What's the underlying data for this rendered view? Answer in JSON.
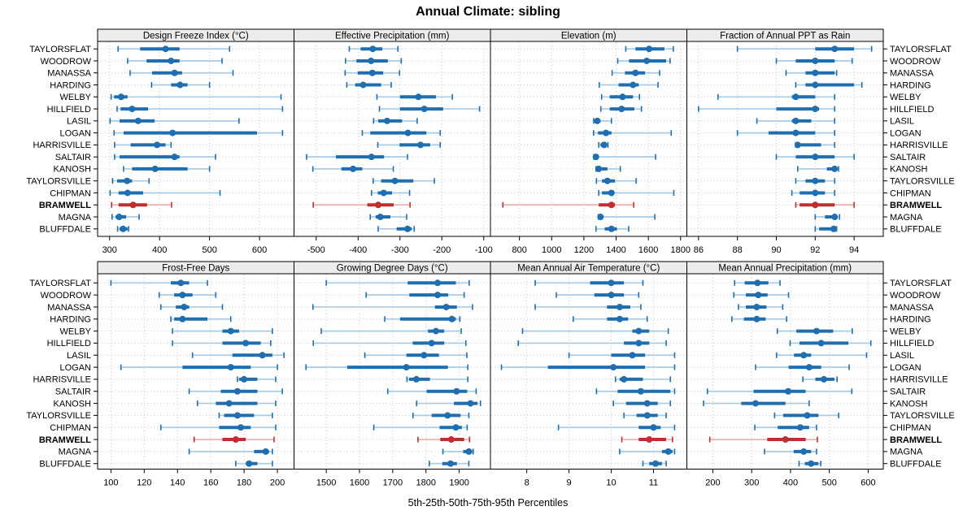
{
  "title": "Annual Climate: sibling",
  "caption": "5th-25th-50th-75th-95th Percentiles",
  "percentile_labels": [
    "5th",
    "25th",
    "50th",
    "75th",
    "95th"
  ],
  "locations": [
    "TAYLORSFLAT",
    "WOODROW",
    "MANASSA",
    "HARDING",
    "WELBY",
    "HILLFIELD",
    "LASIL",
    "LOGAN",
    "HARRISVILLE",
    "SALTAIR",
    "KANOSH",
    "TAYLORSVILLE",
    "CHIPMAN",
    "BRAMWELL",
    "MAGNA",
    "BLUFFDALE"
  ],
  "highlight": {
    "name": "BRAMWELL",
    "index": 13
  },
  "colors": {
    "series": "#1f6eb0",
    "series_light": "#a8cbe6",
    "highlight": "#bf2f2f",
    "highlight_light": "#eaaeae",
    "strip_bg": "#ececec",
    "panel_border": "#000000",
    "grid": "#c9c9c9",
    "text": "#000000"
  },
  "chart_data": {
    "type": "trellis-interval-dotplot",
    "grid_layout": {
      "rows": 2,
      "cols": 4
    },
    "legend_position": "none",
    "grid": true,
    "panels": [
      {
        "slug": "design-freeze-index",
        "title": "Design Freeze Index (°C)",
        "row": 0,
        "col": 0,
        "xlim": [
          276,
          669
        ],
        "ticks": [
          300,
          400,
          500,
          600
        ],
        "values": [
          [
            317,
            361,
            412,
            440,
            540
          ],
          [
            336,
            374,
            423,
            440,
            525
          ],
          [
            341,
            385,
            430,
            445,
            547
          ],
          [
            384,
            423,
            441,
            456,
            500
          ],
          [
            303,
            309,
            323,
            336,
            643
          ],
          [
            315,
            322,
            345,
            377,
            646
          ],
          [
            301,
            320,
            357,
            390,
            559
          ],
          [
            309,
            328,
            426,
            595,
            646
          ],
          [
            310,
            342,
            395,
            412,
            423
          ],
          [
            310,
            320,
            430,
            440,
            512
          ],
          [
            328,
            345,
            391,
            456,
            500
          ],
          [
            306,
            315,
            335,
            345,
            379
          ],
          [
            301,
            318,
            336,
            367,
            521
          ],
          [
            304,
            318,
            347,
            375,
            424
          ],
          [
            305,
            312,
            319,
            333,
            359
          ],
          [
            316,
            320,
            327,
            336,
            338
          ]
        ]
      },
      {
        "slug": "effective-precipitation",
        "title": "Effective Precipitation (mm)",
        "row": 0,
        "col": 1,
        "xlim": [
          -553,
          -84
        ],
        "ticks": [
          -500,
          -400,
          -300,
          -200,
          -100
        ],
        "values": [
          [
            -421,
            -394,
            -365,
            -342,
            -305
          ],
          [
            -430,
            -404,
            -369,
            -329,
            -297
          ],
          [
            -431,
            -401,
            -366,
            -340,
            -301
          ],
          [
            -427,
            -407,
            -388,
            -345,
            -321
          ],
          [
            -355,
            -300,
            -256,
            -214,
            -175
          ],
          [
            -349,
            -300,
            -242,
            -197,
            -110
          ],
          [
            -363,
            -352,
            -331,
            -295,
            -259
          ],
          [
            -390,
            -371,
            -281,
            -237,
            -204
          ],
          [
            -353,
            -301,
            -251,
            -228,
            -204
          ],
          [
            -523,
            -453,
            -368,
            -338,
            -282
          ],
          [
            -508,
            -440,
            -412,
            -390,
            -316
          ],
          [
            -364,
            -345,
            -312,
            -268,
            -218
          ],
          [
            -368,
            -353,
            -339,
            -319,
            -277
          ],
          [
            -507,
            -378,
            -352,
            -315,
            -276
          ],
          [
            -371,
            -358,
            -347,
            -323,
            -284
          ],
          [
            -352,
            -308,
            -282,
            -272,
            -266
          ]
        ]
      },
      {
        "slug": "elevation",
        "title": "Elevation (m)",
        "row": 0,
        "col": 2,
        "xlim": [
          620,
          1839
        ],
        "ticks": [
          800,
          1000,
          1200,
          1400,
          1600,
          1800
        ],
        "values": [
          [
            1460,
            1520,
            1605,
            1700,
            1755
          ],
          [
            1410,
            1480,
            1590,
            1710,
            1735
          ],
          [
            1375,
            1455,
            1520,
            1580,
            1670
          ],
          [
            1295,
            1415,
            1505,
            1540,
            1660
          ],
          [
            1310,
            1360,
            1440,
            1505,
            1545
          ],
          [
            1305,
            1360,
            1434,
            1513,
            1557
          ],
          [
            1261,
            1266,
            1283,
            1303,
            1371
          ],
          [
            1260,
            1287,
            1337,
            1371,
            1742
          ],
          [
            1292,
            1303,
            1325,
            1340,
            1349
          ],
          [
            1261,
            1264,
            1275,
            1292,
            1645
          ],
          [
            1275,
            1280,
            1292,
            1346,
            1426
          ],
          [
            1278,
            1312,
            1346,
            1393,
            1524
          ],
          [
            1292,
            1312,
            1371,
            1385,
            1758
          ],
          [
            697,
            1292,
            1371,
            1393,
            1509
          ],
          [
            1290,
            1293,
            1303,
            1320,
            1640
          ],
          [
            1275,
            1329,
            1371,
            1405,
            1478
          ]
        ]
      },
      {
        "slug": "fraction-annual-ppt-rain",
        "title": "Fraction of Annual PPT as Rain",
        "row": 0,
        "col": 3,
        "xlim": [
          85.4,
          95.5
        ],
        "ticks": [
          86,
          88,
          90,
          92,
          94
        ],
        "values": [
          [
            88,
            92,
            93,
            94,
            94.9
          ],
          [
            90,
            91,
            92,
            93,
            93.9
          ],
          [
            90.5,
            91.5,
            92,
            93,
            93.1
          ],
          [
            91,
            91.5,
            92,
            94,
            94.4
          ],
          [
            87,
            90.8,
            91,
            92,
            93
          ],
          [
            86,
            90,
            92,
            92.2,
            93
          ],
          [
            89,
            90.8,
            91,
            91.8,
            93
          ],
          [
            88,
            89.6,
            91,
            92,
            93
          ],
          [
            91,
            91.05,
            91.1,
            92.3,
            93
          ],
          [
            90,
            91,
            92,
            93,
            94
          ],
          [
            91.1,
            92.6,
            93,
            93.1,
            93.2
          ],
          [
            91,
            91.5,
            92,
            92.5,
            93
          ],
          [
            90.8,
            91.2,
            92,
            92.5,
            93
          ],
          [
            91,
            91.2,
            92,
            93,
            94
          ],
          [
            92,
            92.5,
            93,
            93.1,
            93.25
          ],
          [
            92,
            92.2,
            92.95,
            93.05,
            93.1
          ]
        ]
      },
      {
        "slug": "frost-free-days",
        "title": "Frost-Free Days",
        "row": 1,
        "col": 0,
        "xlim": [
          92,
          210
        ],
        "ticks": [
          100,
          120,
          140,
          160,
          180,
          200
        ],
        "values": [
          [
            100,
            136,
            142,
            147,
            158
          ],
          [
            129,
            138,
            143,
            149,
            163
          ],
          [
            130,
            139,
            144,
            147,
            167
          ],
          [
            136,
            138,
            143,
            158,
            172
          ],
          [
            137,
            167,
            172,
            177,
            197
          ],
          [
            137,
            167,
            181,
            190,
            196
          ],
          [
            149,
            173,
            191,
            197,
            204
          ],
          [
            106,
            143,
            172,
            184,
            200
          ],
          [
            176,
            177,
            180,
            188,
            199
          ],
          [
            147,
            166,
            176,
            188,
            203
          ],
          [
            152,
            163,
            171,
            188,
            199
          ],
          [
            165,
            168,
            176,
            186,
            197
          ],
          [
            130,
            165,
            178,
            184,
            199
          ],
          [
            150,
            167,
            175,
            181,
            198
          ],
          [
            147,
            186,
            193,
            195,
            197
          ],
          [
            175,
            181,
            183,
            188,
            197
          ]
        ]
      },
      {
        "slug": "growing-degree-days",
        "title": "Growing Degree Days (°C)",
        "row": 1,
        "col": 1,
        "xlim": [
          1403,
          1994
        ],
        "ticks": [
          1500,
          1600,
          1700,
          1800,
          1900
        ],
        "values": [
          [
            1500,
            1745,
            1835,
            1890,
            1930
          ],
          [
            1620,
            1750,
            1835,
            1867,
            1915
          ],
          [
            1460,
            1827,
            1861,
            1893,
            1940
          ],
          [
            1676,
            1722,
            1878,
            1890,
            1902
          ],
          [
            1485,
            1806,
            1830,
            1855,
            1906
          ],
          [
            1461,
            1760,
            1817,
            1855,
            1920
          ],
          [
            1616,
            1741,
            1794,
            1839,
            1923
          ],
          [
            1439,
            1563,
            1741,
            1866,
            1926
          ],
          [
            1743,
            1749,
            1771,
            1812,
            1926
          ],
          [
            1685,
            1802,
            1892,
            1924,
            1951
          ],
          [
            1772,
            1884,
            1934,
            1955,
            1964
          ],
          [
            1761,
            1817,
            1865,
            1904,
            1929
          ],
          [
            1643,
            1841,
            1890,
            1908,
            1924
          ],
          [
            1776,
            1843,
            1876,
            1915,
            1931
          ],
          [
            1851,
            1912,
            1929,
            1939,
            1942
          ],
          [
            1810,
            1849,
            1874,
            1893,
            1929
          ]
        ]
      },
      {
        "slug": "mean-annual-air-temperature",
        "title": "Mean Annual Air Temperature (°C)",
        "row": 1,
        "col": 2,
        "xlim": [
          7.14,
          11.79
        ],
        "ticks": [
          8,
          9,
          10,
          11
        ],
        "values": [
          [
            8.2,
            9.5,
            10.0,
            10.3,
            10.75
          ],
          [
            8.7,
            9.6,
            10.0,
            10.3,
            10.65
          ],
          [
            8.2,
            9.9,
            10.2,
            10.45,
            10.7
          ],
          [
            9.1,
            9.9,
            10.2,
            10.4,
            10.85
          ],
          [
            7.9,
            10.5,
            10.65,
            10.9,
            11.35
          ],
          [
            7.8,
            10.3,
            10.65,
            10.9,
            11.3
          ],
          [
            9.0,
            10.0,
            10.5,
            10.8,
            11.5
          ],
          [
            7.4,
            8.5,
            10.05,
            10.8,
            11.5
          ],
          [
            10.1,
            10.2,
            10.3,
            10.75,
            11.4
          ],
          [
            9.65,
            10.15,
            10.7,
            11.4,
            11.5
          ],
          [
            10.05,
            10.35,
            10.85,
            11.1,
            11.4
          ],
          [
            10.3,
            10.6,
            10.85,
            11.1,
            11.3
          ],
          [
            8.75,
            10.65,
            11.0,
            11.17,
            11.5
          ],
          [
            10.25,
            10.65,
            10.9,
            11.3,
            11.45
          ],
          [
            10.2,
            11.2,
            11.35,
            11.45,
            11.5
          ],
          [
            10.75,
            10.9,
            11.05,
            11.2,
            11.3
          ]
        ]
      },
      {
        "slug": "mean-annual-precipitation",
        "title": "Mean Annual Precipitation (mm)",
        "row": 1,
        "col": 3,
        "xlim": [
          133,
          639
        ],
        "ticks": [
          200,
          300,
          400,
          500,
          600
        ],
        "values": [
          [
            256,
            282,
            315,
            343,
            373
          ],
          [
            254,
            285,
            317,
            341,
            395
          ],
          [
            266,
            285,
            313,
            338,
            380
          ],
          [
            249,
            280,
            313,
            336,
            390
          ],
          [
            366,
            415,
            467,
            510,
            559
          ],
          [
            399,
            423,
            479,
            549,
            607
          ],
          [
            364,
            409,
            434,
            453,
            596
          ],
          [
            310,
            395,
            448,
            479,
            551
          ],
          [
            432,
            464,
            486,
            513,
            520
          ],
          [
            186,
            305,
            394,
            439,
            558
          ],
          [
            176,
            273,
            310,
            387,
            448
          ],
          [
            359,
            381,
            443,
            472,
            524
          ],
          [
            308,
            367,
            425,
            448,
            467
          ],
          [
            192,
            340,
            387,
            439,
            469
          ],
          [
            333,
            408,
            434,
            453,
            467
          ],
          [
            422,
            437,
            453,
            472,
            478
          ]
        ]
      }
    ]
  }
}
